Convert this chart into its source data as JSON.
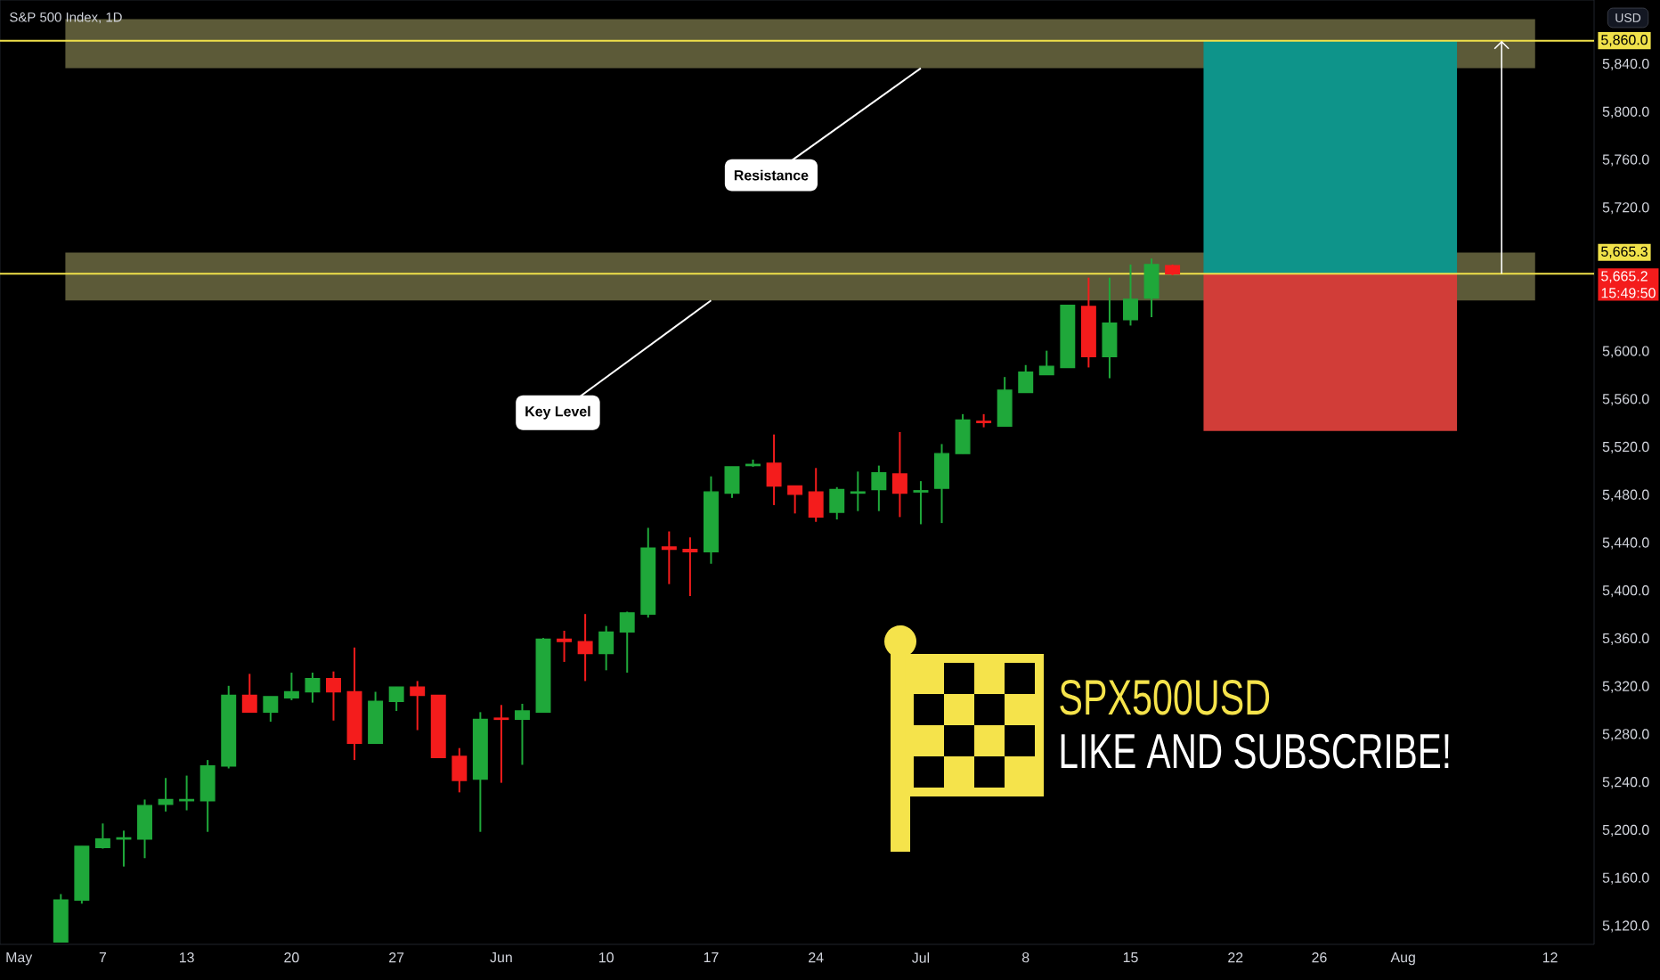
{
  "chart_data": {
    "type": "candlestick",
    "title": "S&P 500 Index, 1D",
    "ylabel": "USD",
    "categories": [
      "May",
      null,
      null,
      null,
      "7",
      null,
      null,
      null,
      "13",
      null,
      null,
      null,
      null,
      "20",
      null,
      null,
      null,
      null,
      "27",
      null,
      null,
      null,
      null,
      "Jun",
      null,
      null,
      null,
      null,
      "10",
      null,
      null,
      null,
      null,
      "17",
      null,
      null,
      null,
      null,
      "24",
      null,
      null,
      null,
      null,
      "Jul",
      null,
      null,
      null,
      null,
      "8",
      null,
      null,
      null,
      null,
      "15",
      null,
      null,
      null,
      null,
      "22",
      null,
      null,
      null,
      "26",
      null,
      null,
      null,
      "Aug",
      null,
      null,
      null,
      null,
      null,
      null,
      "12",
      null,
      null
    ],
    "ohlc": [
      null,
      null,
      [
        5107,
        5147,
        5107,
        5142
      ],
      [
        5142,
        5187,
        5139,
        5187
      ],
      [
        5186,
        5206,
        5185,
        5193
      ],
      [
        5193,
        5200,
        5170,
        5194
      ],
      [
        5193,
        5226,
        5177,
        5221
      ],
      [
        5222,
        5244,
        5216,
        5226
      ],
      [
        5225,
        5246,
        5217,
        5226
      ],
      [
        5225,
        5259,
        5199,
        5254
      ],
      [
        5254,
        5321,
        5252,
        5313
      ],
      [
        5313,
        5331,
        5299,
        5299
      ],
      [
        5299,
        5312,
        5291,
        5312
      ],
      [
        5311,
        5332,
        5309,
        5316
      ],
      [
        5316,
        5332,
        5307,
        5327
      ],
      [
        5327,
        5333,
        5292,
        5316
      ],
      [
        5316,
        5353,
        5259,
        5273
      ],
      [
        5273,
        5316,
        5273,
        5308
      ],
      [
        5308,
        5320,
        5300,
        5320
      ],
      [
        5320,
        5325,
        5284,
        5313
      ],
      [
        5313,
        5313,
        5261,
        5261
      ],
      [
        5262,
        5269,
        5232,
        5242
      ],
      [
        5243,
        5299,
        5199,
        5293
      ],
      [
        5294,
        5305,
        5240,
        5293
      ],
      [
        5293,
        5306,
        5255,
        5300
      ],
      [
        5299,
        5361,
        5299,
        5360
      ],
      [
        5360,
        5367,
        5341,
        5358
      ],
      [
        5358,
        5381,
        5325,
        5348
      ],
      [
        5348,
        5371,
        5334,
        5366
      ],
      [
        5366,
        5383,
        5332,
        5382
      ],
      [
        5381,
        5453,
        5378,
        5436
      ],
      [
        5437,
        5450,
        5406,
        5435
      ],
      [
        5435,
        5445,
        5396,
        5433
      ],
      [
        5433,
        5496,
        5423,
        5483
      ],
      [
        5482,
        5504,
        5478,
        5504
      ],
      [
        5505,
        5510,
        5504,
        5506
      ],
      [
        5507,
        5531,
        5472,
        5488
      ],
      [
        5488,
        5488,
        5465,
        5481
      ],
      [
        5483,
        5503,
        5458,
        5462
      ],
      [
        5466,
        5487,
        5460,
        5485
      ],
      [
        5482,
        5500,
        5467,
        5483
      ],
      [
        5485,
        5505,
        5467,
        5499
      ],
      [
        5498,
        5533,
        5462,
        5482
      ],
      [
        5483,
        5492,
        5456,
        5484
      ],
      [
        5486,
        5523,
        5457,
        5515
      ],
      [
        5515,
        5548,
        5515,
        5543
      ],
      [
        5542,
        5548,
        5537,
        5541
      ],
      [
        5538,
        5579,
        5538,
        5568
      ],
      [
        5566,
        5589,
        5566,
        5583
      ],
      [
        5581,
        5601,
        5581,
        5588
      ],
      [
        5587,
        5639,
        5587,
        5639
      ],
      [
        5638,
        5662,
        5587,
        5596
      ],
      [
        5596,
        5662,
        5578,
        5624
      ],
      [
        5627,
        5673,
        5622,
        5644
      ],
      [
        5645,
        5678,
        5629,
        5673
      ],
      [
        5672,
        5673,
        5664,
        5665.2
      ],
      null,
      null,
      null,
      null,
      null,
      null,
      null,
      null,
      null,
      null,
      null,
      null,
      null,
      null,
      null,
      null,
      null,
      null,
      null,
      null
    ],
    "colors": [
      null,
      null,
      "#1fa83a",
      "#1fa83a",
      "#1fa83a",
      "#1fa83a",
      "#1fa83a",
      "#1fa83a",
      "#1fa83a",
      "#1fa83a",
      "#1fa83a",
      "#f41c1c",
      "#1fa83a",
      "#1fa83a",
      "#1fa83a",
      "#f41c1c",
      "#f41c1c",
      "#1fa83a",
      "#1fa83a",
      "#f41c1c",
      "#f41c1c",
      "#f41c1c",
      "#1fa83a",
      "#f41c1c",
      "#1fa83a",
      "#1fa83a",
      "#f41c1c",
      "#f41c1c",
      "#1fa83a",
      "#1fa83a",
      "#1fa83a",
      "#f41c1c",
      "#f41c1c",
      "#1fa83a",
      "#1fa83a",
      "#1fa83a",
      "#f41c1c",
      "#f41c1c",
      "#f41c1c",
      "#1fa83a",
      "#1fa83a",
      "#1fa83a",
      "#f41c1c",
      "#1fa83a",
      "#1fa83a",
      "#1fa83a",
      "#f41c1c",
      "#1fa83a",
      "#1fa83a",
      "#1fa83a",
      "#1fa83a",
      "#f41c1c",
      "#1fa83a",
      "#1fa83a",
      "#1fa83a",
      "#f41c1c",
      null,
      null,
      null,
      null,
      null,
      null,
      null,
      null,
      null,
      null,
      null,
      null,
      null,
      null,
      null,
      null,
      null,
      null,
      null,
      null
    ],
    "ylim": [
      5105,
      5894
    ],
    "yticks": [
      {
        "value": 5120,
        "label": "5,120.0"
      },
      {
        "value": 5160,
        "label": "5,160.0"
      },
      {
        "value": 5200,
        "label": "5,200.0"
      },
      {
        "value": 5240,
        "label": "5,240.0"
      },
      {
        "value": 5280,
        "label": "5,280.0"
      },
      {
        "value": 5320,
        "label": "5,320.0"
      },
      {
        "value": 5360,
        "label": "5,360.0"
      },
      {
        "value": 5400,
        "label": "5,400.0"
      },
      {
        "value": 5440,
        "label": "5,440.0"
      },
      {
        "value": 5480,
        "label": "5,480.0"
      },
      {
        "value": 5520,
        "label": "5,520.0"
      },
      {
        "value": 5560,
        "label": "5,560.0"
      },
      {
        "value": 5600,
        "label": "5,600.0"
      },
      {
        "value": 5720,
        "label": "5,720.0"
      },
      {
        "value": 5760,
        "label": "5,760.0"
      },
      {
        "value": 5800,
        "label": "5,800.0"
      },
      {
        "value": 5840,
        "label": "5,840.0"
      }
    ],
    "bands": [
      {
        "axis": "y",
        "from": 5837,
        "to": 5878,
        "color": "#5c5a38"
      },
      {
        "axis": "y",
        "from": 5643,
        "to": 5683,
        "color": "#5c5a38"
      },
      {
        "axis": "y",
        "from": 5665.3,
        "to": 5860,
        "color": "#0e948a"
      },
      {
        "axis": "y",
        "from": 5534,
        "to": 5665.3,
        "color": "#d13d38"
      }
    ],
    "ref_lines": [
      {
        "axis": "y",
        "value": 5665.3,
        "label": "5,665.3",
        "color": "#f0e14a"
      },
      {
        "axis": "y",
        "value": 5860,
        "label": "5,860.0",
        "color": "#f0e14a"
      }
    ],
    "annotations": [
      {
        "text": "Resistance",
        "x": "Jul",
        "y": 5837
      },
      {
        "text": "Key Level",
        "x": "17",
        "y": 5643
      },
      "5,665.2",
      "15:49:50",
      "SPX500USD",
      "LIKE AND SUBSCRIBE!"
    ]
  }
}
